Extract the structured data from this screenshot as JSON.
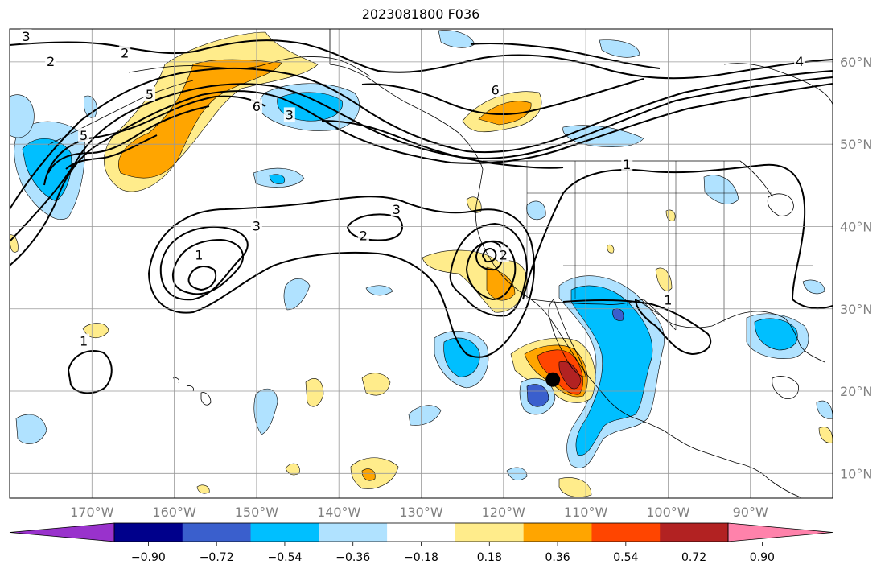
{
  "title": "2023081800 F036",
  "map": {
    "projection": "PlateCarree",
    "lon_range": [
      -180,
      -80
    ],
    "lat_range": [
      7,
      64
    ],
    "grid": true,
    "lon_ticks": [
      {
        "lon": -170,
        "label": "170°W"
      },
      {
        "lon": -160,
        "label": "160°W"
      },
      {
        "lon": -150,
        "label": "150°W"
      },
      {
        "lon": -140,
        "label": "140°W"
      },
      {
        "lon": -130,
        "label": "130°W"
      },
      {
        "lon": -120,
        "label": "120°W"
      },
      {
        "lon": -110,
        "label": "110°W"
      },
      {
        "lon": -100,
        "label": "100°W"
      },
      {
        "lon": -90,
        "label": "90°W"
      }
    ],
    "lat_ticks": [
      {
        "lat": 10,
        "label": "10°N"
      },
      {
        "lat": 20,
        "label": "20°N"
      },
      {
        "lat": 30,
        "label": "30°N"
      },
      {
        "lat": 40,
        "label": "40°N"
      },
      {
        "lat": 50,
        "label": "50°N"
      },
      {
        "lat": 60,
        "label": "60°N"
      }
    ],
    "marker": {
      "lon": -114,
      "lat": 21.4,
      "color": "#000000"
    }
  },
  "colorbar": {
    "colors": [
      "#9932cc",
      "#00008b",
      "#3a5fcd",
      "#00bfff",
      "#b0e2ff",
      "#ffffff",
      "#ffec8b",
      "#ffa500",
      "#ff4500",
      "#b22222",
      "#ff82ab"
    ],
    "boundaries": [
      -0.9,
      -0.72,
      -0.54,
      -0.36,
      -0.18,
      0.18,
      0.36,
      0.54,
      0.72,
      0.9
    ],
    "labels": [
      "−0.90",
      "−0.72",
      "−0.54",
      "−0.36",
      "−0.18",
      "0.18",
      "0.36",
      "0.54",
      "0.72",
      "0.90"
    ]
  },
  "contour_labels": [
    {
      "text": "2",
      "lon": -175,
      "lat": 60
    },
    {
      "text": "3",
      "lon": -178,
      "lat": 63
    },
    {
      "text": "2",
      "lon": -166,
      "lat": 61
    },
    {
      "text": "5",
      "lon": -171,
      "lat": 51
    },
    {
      "text": "5",
      "lon": -163,
      "lat": 56
    },
    {
      "text": "6",
      "lon": -150,
      "lat": 54.5
    },
    {
      "text": "3",
      "lon": -146,
      "lat": 53.5
    },
    {
      "text": "6",
      "lon": -121,
      "lat": 56.5
    },
    {
      "text": "4",
      "lon": -84,
      "lat": 60
    },
    {
      "text": "1",
      "lon": -105,
      "lat": 47.5
    },
    {
      "text": "3",
      "lon": -150,
      "lat": 40
    },
    {
      "text": "1",
      "lon": -157,
      "lat": 36.5
    },
    {
      "text": "3",
      "lon": -133,
      "lat": 42
    },
    {
      "text": "2",
      "lon": -137,
      "lat": 38.8
    },
    {
      "text": "2",
      "lon": -120,
      "lat": 36.5
    },
    {
      "text": "1",
      "lon": -100,
      "lat": 31
    },
    {
      "text": "1",
      "lon": -171,
      "lat": 26
    }
  ]
}
